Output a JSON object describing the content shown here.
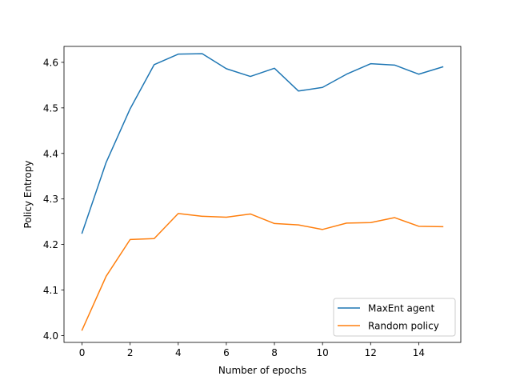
{
  "chart_data": {
    "type": "line",
    "title": "",
    "xlabel": "Number of epochs",
    "ylabel": "Policy Entropy",
    "xlim": [
      -0.75,
      15.75
    ],
    "ylim": [
      3.985,
      4.635
    ],
    "xticks": [
      0,
      2,
      4,
      6,
      8,
      10,
      12,
      14
    ],
    "xtick_labels": [
      "0",
      "2",
      "4",
      "6",
      "8",
      "10",
      "12",
      "14"
    ],
    "yticks": [
      4.0,
      4.1,
      4.2,
      4.3,
      4.4,
      4.5,
      4.6
    ],
    "ytick_labels": [
      "4.0",
      "4.1",
      "4.2",
      "4.3",
      "4.4",
      "4.5",
      "4.6"
    ],
    "grid": false,
    "legend_position": "bottom-right",
    "x": [
      0,
      1,
      2,
      3,
      4,
      5,
      6,
      7,
      8,
      9,
      10,
      11,
      12,
      13,
      14,
      15
    ],
    "series": [
      {
        "name": "MaxEnt agent",
        "color": "#1f77b4",
        "values": [
          4.225,
          4.38,
          4.498,
          4.595,
          4.618,
          4.619,
          4.586,
          4.569,
          4.587,
          4.537,
          4.545,
          4.574,
          4.597,
          4.594,
          4.574,
          4.59
        ]
      },
      {
        "name": "Random policy",
        "color": "#ff7f0e",
        "values": [
          4.012,
          4.13,
          4.211,
          4.213,
          4.268,
          4.262,
          4.26,
          4.267,
          4.246,
          4.243,
          4.233,
          4.247,
          4.248,
          4.259,
          4.24,
          4.239
        ]
      }
    ]
  }
}
